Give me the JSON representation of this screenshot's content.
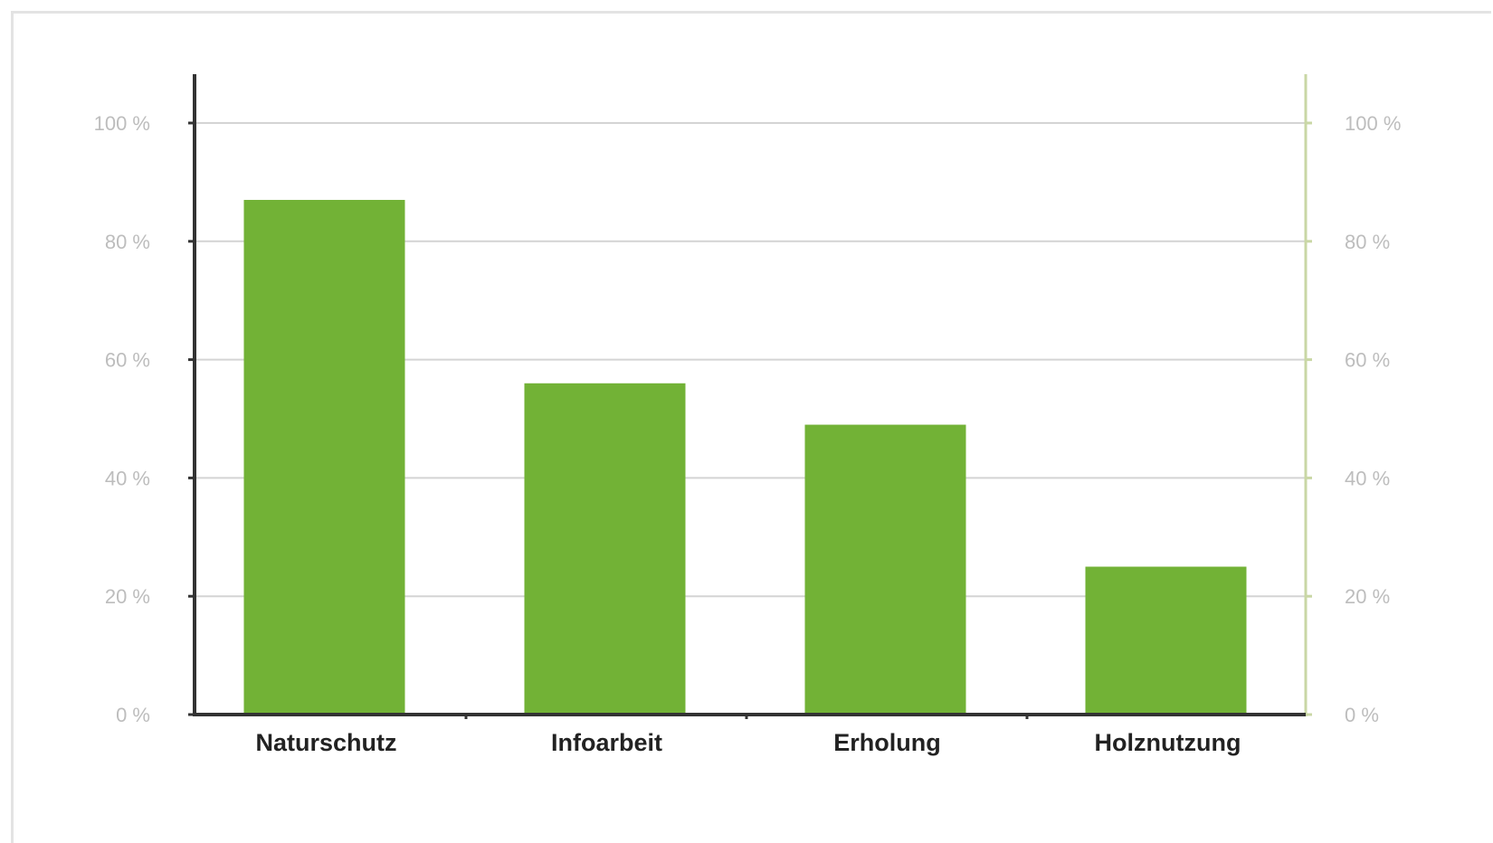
{
  "chart_data": {
    "type": "bar",
    "categories": [
      "Naturschutz",
      "Infoarbeit",
      "Erholung",
      "Holznutzung"
    ],
    "values": [
      87,
      56,
      49,
      25
    ],
    "ylim": [
      0,
      100
    ],
    "yticks": [
      0,
      20,
      40,
      60,
      80,
      100
    ],
    "ytick_labels": [
      "0 %",
      "20 %",
      "40 %",
      "60 %",
      "80 %",
      "100 %"
    ],
    "title": "",
    "xlabel": "",
    "ylabel": "",
    "grid": true,
    "legend": "none",
    "secondary_axis": true,
    "colors": {
      "bar": "#72b236",
      "grid": "#d4d4d4",
      "axis": "#333333",
      "right_axis": "#c9d7a5"
    }
  }
}
